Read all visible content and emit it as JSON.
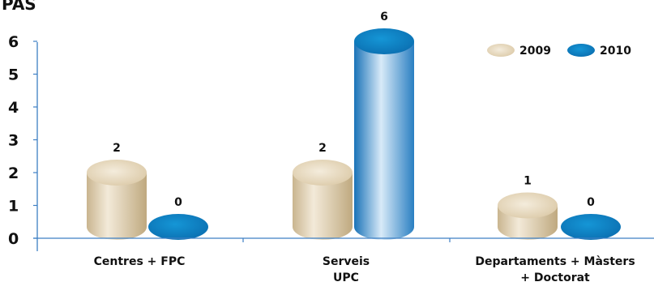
{
  "chart_data": {
    "type": "bar",
    "title": "PAS",
    "categories": [
      [
        "Centres + FPC"
      ],
      [
        "Serveis",
        "UPC"
      ],
      [
        "Departaments + Màsters",
        "+ Doctorat"
      ]
    ],
    "series": [
      {
        "name": "2009",
        "values": [
          2,
          2,
          1
        ]
      },
      {
        "name": "2010",
        "values": [
          0,
          6,
          0
        ]
      }
    ],
    "yticks": [
      "0",
      "1",
      "2",
      "3",
      "4",
      "5",
      "6"
    ],
    "ylim": [
      0,
      6
    ],
    "legend_position": "top-right",
    "grid": false,
    "colors": {
      "s2009_light": "#f2e9d8",
      "s2009_mid": "#dbc9a6",
      "s2009_dark": "#c2ac82",
      "s2010_light": "#d5e8f6",
      "s2010_mid": "#5d9ed6",
      "s2010_dark": "#0f6fb4",
      "s2010_top": "#0e8bd0",
      "axis": "#3d7fc4"
    }
  }
}
